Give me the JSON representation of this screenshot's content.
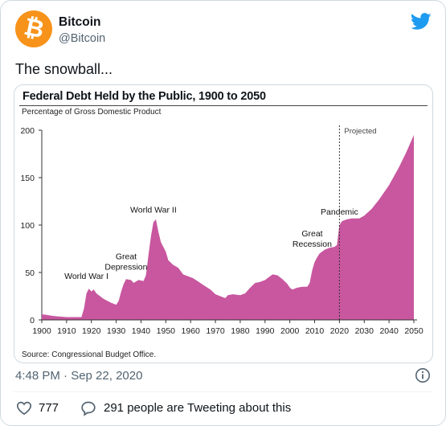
{
  "tweet": {
    "author_name": "Bitcoin",
    "handle": "@Bitcoin",
    "avatar_glyph": "₿",
    "avatar_color": "#f7931a",
    "text": "The snowball...",
    "timestamp": "4:48 PM · Sep 22, 2020",
    "like_count": "777",
    "reply_text": "291 people are Tweeting about this",
    "brand_icon": "twitter-bird-icon",
    "brand_color": "#1d9bf0"
  },
  "chart_data": {
    "type": "area",
    "title": "Federal Debt Held by the Public, 1900 to 2050",
    "ylabel": "Percentage of Gross Domestic Product",
    "source": "Source: Congressional Budget Office.",
    "color": "#c8579f",
    "xlim": [
      1900,
      2050
    ],
    "ylim": [
      0,
      200
    ],
    "x_ticks": [
      1900,
      1910,
      1920,
      1930,
      1940,
      1950,
      1960,
      1970,
      1980,
      1990,
      2000,
      2010,
      2020,
      2030,
      2040,
      2050
    ],
    "y_ticks": [
      0,
      50,
      100,
      150,
      200
    ],
    "projection_start": 2020,
    "projection_label": "Projected",
    "points": [
      [
        1900,
        6
      ],
      [
        1905,
        4
      ],
      [
        1910,
        3
      ],
      [
        1915,
        3
      ],
      [
        1916,
        3
      ],
      [
        1917,
        12
      ],
      [
        1918,
        28
      ],
      [
        1919,
        33
      ],
      [
        1920,
        30
      ],
      [
        1921,
        32
      ],
      [
        1922,
        28
      ],
      [
        1925,
        22
      ],
      [
        1928,
        18
      ],
      [
        1930,
        16
      ],
      [
        1931,
        20
      ],
      [
        1932,
        30
      ],
      [
        1933,
        38
      ],
      [
        1934,
        43
      ],
      [
        1936,
        42
      ],
      [
        1937,
        39
      ],
      [
        1939,
        42
      ],
      [
        1941,
        41
      ],
      [
        1942,
        47
      ],
      [
        1943,
        68
      ],
      [
        1944,
        88
      ],
      [
        1945,
        103
      ],
      [
        1946,
        106
      ],
      [
        1947,
        93
      ],
      [
        1948,
        82
      ],
      [
        1949,
        77
      ],
      [
        1950,
        72
      ],
      [
        1951,
        63
      ],
      [
        1953,
        58
      ],
      [
        1955,
        55
      ],
      [
        1957,
        48
      ],
      [
        1959,
        46
      ],
      [
        1961,
        44
      ],
      [
        1965,
        37
      ],
      [
        1968,
        32
      ],
      [
        1970,
        27
      ],
      [
        1973,
        24
      ],
      [
        1974,
        23
      ],
      [
        1975,
        26
      ],
      [
        1977,
        27
      ],
      [
        1980,
        26
      ],
      [
        1982,
        28
      ],
      [
        1984,
        34
      ],
      [
        1986,
        39
      ],
      [
        1988,
        40
      ],
      [
        1990,
        42
      ],
      [
        1992,
        46
      ],
      [
        1993,
        48
      ],
      [
        1995,
        47
      ],
      [
        1997,
        43
      ],
      [
        1999,
        38
      ],
      [
        2000,
        34
      ],
      [
        2001,
        32
      ],
      [
        2003,
        34
      ],
      [
        2005,
        35
      ],
      [
        2007,
        35
      ],
      [
        2008,
        39
      ],
      [
        2009,
        52
      ],
      [
        2010,
        61
      ],
      [
        2011,
        66
      ],
      [
        2012,
        70
      ],
      [
        2014,
        74
      ],
      [
        2016,
        76
      ],
      [
        2018,
        77
      ],
      [
        2019,
        79
      ],
      [
        2020,
        100
      ],
      [
        2021,
        104
      ],
      [
        2023,
        106
      ],
      [
        2025,
        107
      ],
      [
        2028,
        107
      ],
      [
        2030,
        110
      ],
      [
        2033,
        117
      ],
      [
        2036,
        127
      ],
      [
        2040,
        142
      ],
      [
        2044,
        161
      ],
      [
        2047,
        177
      ],
      [
        2050,
        195
      ]
    ],
    "annotations": [
      {
        "text": "World War I",
        "x": 1918,
        "y": 38
      },
      {
        "text": "Great\nDepression",
        "x": 1934,
        "y": 48
      },
      {
        "text": "World War II",
        "x": 1945,
        "y": 108
      },
      {
        "text": "Pandemic",
        "x": 2020,
        "y": 106
      },
      {
        "text": "Great\nRecession",
        "x": 2009,
        "y": 72
      }
    ]
  }
}
